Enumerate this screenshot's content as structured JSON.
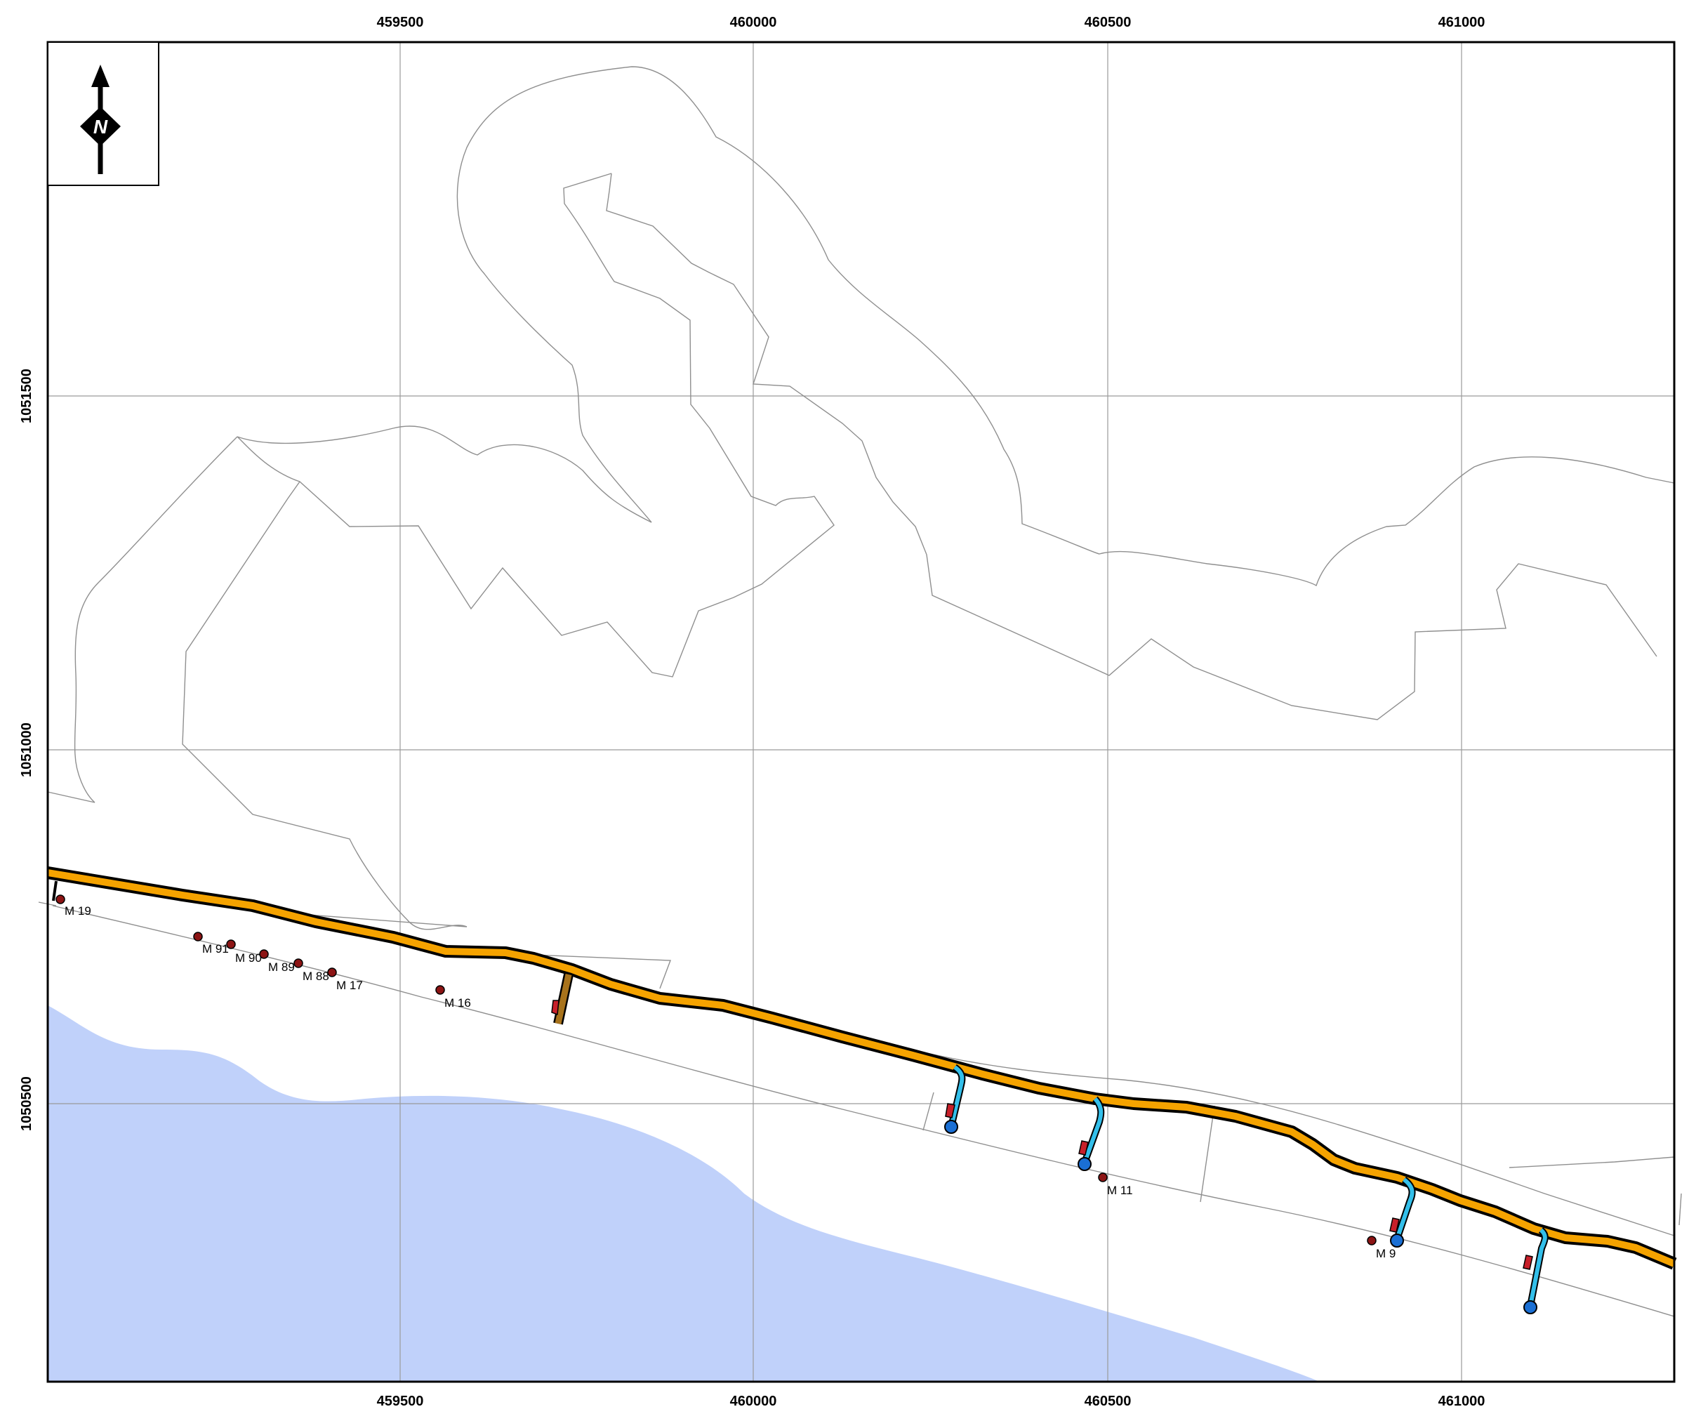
{
  "map": {
    "x_ticks": [
      "459500",
      "460000",
      "460500",
      "461000"
    ],
    "y_ticks": [
      "1051500",
      "1051000",
      "1050500"
    ],
    "north_arrow": {
      "letter": "N",
      "icon": "north-arrow-icon"
    },
    "markers": [
      {
        "id": "m19",
        "label": "M 19"
      },
      {
        "id": "m91",
        "label": "M 91"
      },
      {
        "id": "m90",
        "label": "M 90"
      },
      {
        "id": "m89",
        "label": "M 89"
      },
      {
        "id": "m88",
        "label": "M 88"
      },
      {
        "id": "m17",
        "label": "M 17"
      },
      {
        "id": "m16",
        "label": "M 16"
      },
      {
        "id": "m11",
        "label": "M 11"
      },
      {
        "id": "m9",
        "label": "M 9"
      }
    ],
    "colors": {
      "water": "#c0d1fa",
      "road": "#f5a300",
      "road_casing": "#000000",
      "jetty": "#33bfea",
      "jetty_end": "#1a6fd4",
      "pier_brown": "#a8731c",
      "marker": "#8c1414",
      "boundary": "#8f8f8f",
      "grid": "#9a9a9a"
    }
  }
}
